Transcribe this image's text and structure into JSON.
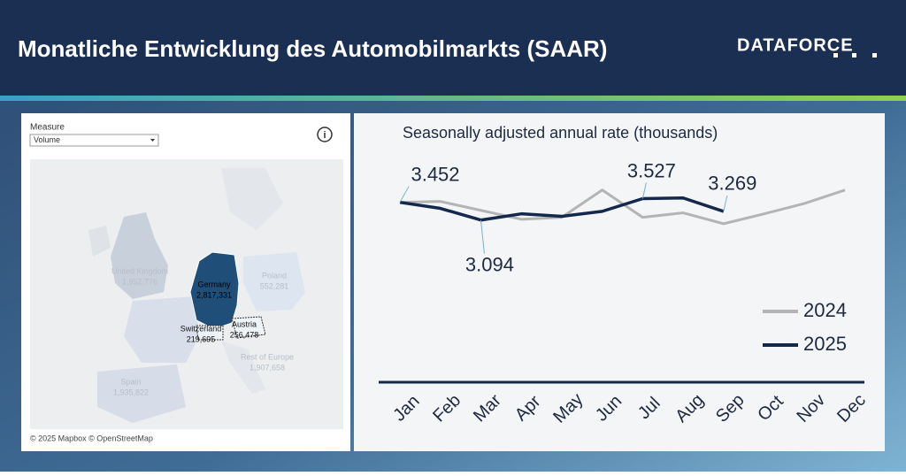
{
  "header": {
    "title": "Monatliche Entwicklung des Automobilmarkts (SAAR)",
    "logo": "DATAFORCE"
  },
  "map": {
    "measure_label": "Measure",
    "measure_value": "Volume",
    "attribution": "© 2025 Mapbox © OpenStreetMap",
    "regions": [
      {
        "name": "United Kingdom",
        "value": "1,952,776"
      },
      {
        "name": "Poland",
        "value": "552,281"
      },
      {
        "name": "Germany",
        "value": "2,817,331"
      },
      {
        "name": "Switzerland",
        "value": "219,695"
      },
      {
        "name": "Austria",
        "value": "256,478"
      },
      {
        "name": "Rest of Europe",
        "value": "1,907,658"
      },
      {
        "name": "Spain",
        "value": "1,935,822"
      }
    ]
  },
  "chart_data": {
    "type": "line",
    "title": "Seasonally adjusted annual rate (thousands)",
    "categories": [
      "Jan",
      "Feb",
      "Mar",
      "Apr",
      "May",
      "Jun",
      "Jul",
      "Aug",
      "Sep",
      "Oct",
      "Nov",
      "Dec"
    ],
    "series": [
      {
        "name": "2024",
        "color": "#b4b4b4",
        "values": [
          3.452,
          3.47,
          3.29,
          3.11,
          3.15,
          3.7,
          3.15,
          3.24,
          3.02,
          3.22,
          3.43,
          3.7
        ]
      },
      {
        "name": "2025",
        "color": "#14284b",
        "values": [
          3.452,
          3.33,
          3.094,
          3.22,
          3.17,
          3.27,
          3.527,
          3.54,
          3.269,
          null,
          null,
          null
        ],
        "value_labels": [
          "3.452",
          null,
          "3.094",
          null,
          null,
          null,
          "3.527",
          null,
          "3.269",
          null,
          null,
          null
        ]
      }
    ],
    "ylim": [
      2.5,
      4.0
    ],
    "legend": "right"
  }
}
